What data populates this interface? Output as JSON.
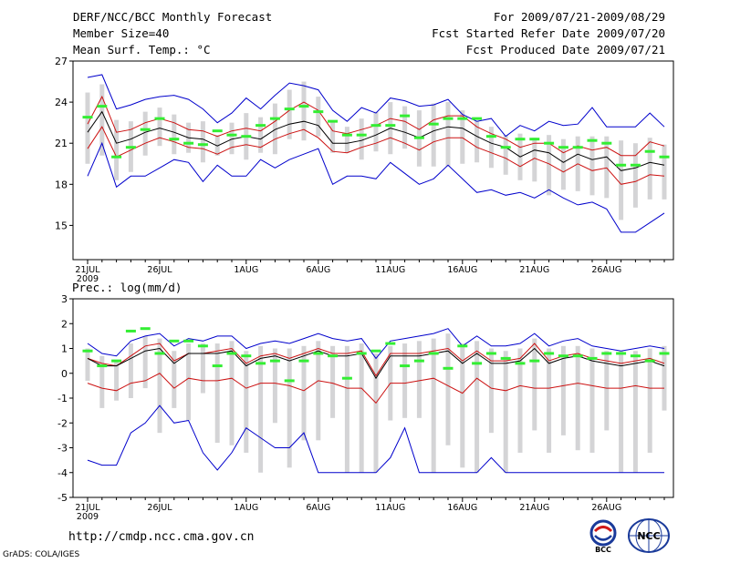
{
  "header": {
    "title": "DERF/NCC/BCC Monthly Forecast",
    "member_size": "Member Size=40",
    "variable": "Mean Surf. Temp.: °C",
    "period": "For 2009/07/21-2009/08/29",
    "started": "Fcst Started Refer Date 2009/07/20",
    "produced": "Fcst Produced Date 2009/07/21"
  },
  "precip_label": "Prec.: log(mm/d)",
  "url": "http://cmdp.ncc.cma.gov.cn",
  "footer": "GrADS: COLA/IGES",
  "logos": {
    "bcc": "BCC",
    "ncc": "NCC"
  },
  "colors": {
    "box": "#d4d4d6",
    "obs": "#33ee33",
    "mean": "#000000",
    "inner": "#cc1111",
    "outer": "#0000cc"
  },
  "chart_data": [
    {
      "type": "line",
      "title": "Mean Surf. Temp.: °C",
      "x_ticks": [
        "21JUL",
        "26JUL",
        "1AUG",
        "6AUG",
        "11AUG",
        "16AUG",
        "21AUG",
        "26AUG"
      ],
      "x_tick_index": [
        0,
        5,
        11,
        16,
        21,
        26,
        31,
        36
      ],
      "x_sub": "2009",
      "y_ticks": [
        15,
        18,
        21,
        24,
        27
      ],
      "ylim": [
        12.5,
        27
      ],
      "series": [
        {
          "name": "ensemble mean",
          "values": [
            21.8,
            23.3,
            21.0,
            21.3,
            21.8,
            22.1,
            21.8,
            21.4,
            21.3,
            20.8,
            21.3,
            21.5,
            21.3,
            22.0,
            22.4,
            22.6,
            22.3,
            21.0,
            21.0,
            21.2,
            21.6,
            22.1,
            21.8,
            21.4,
            21.9,
            22.2,
            22.1,
            21.5,
            21.0,
            20.7,
            20.0,
            20.5,
            20.3,
            19.6,
            20.2,
            19.8,
            20.0,
            19.0,
            19.2,
            19.6,
            19.4
          ]
        },
        {
          "name": "upper inner",
          "values": [
            22.4,
            24.4,
            21.8,
            22.0,
            22.5,
            22.8,
            22.5,
            22.0,
            21.9,
            21.5,
            21.9,
            22.1,
            21.9,
            22.6,
            23.4,
            24.0,
            23.4,
            21.9,
            21.7,
            22.0,
            22.3,
            22.8,
            22.6,
            22.0,
            22.7,
            23.0,
            23.0,
            22.2,
            21.7,
            21.3,
            20.7,
            21.0,
            21.0,
            20.3,
            20.8,
            20.5,
            20.7,
            20.1,
            20.1,
            21.1,
            20.8
          ]
        },
        {
          "name": "lower inner",
          "values": [
            20.6,
            22.2,
            20.0,
            20.5,
            21.0,
            21.4,
            21.1,
            20.7,
            20.6,
            20.2,
            20.7,
            20.9,
            20.7,
            21.3,
            21.7,
            22.0,
            21.4,
            20.4,
            20.3,
            20.7,
            21.0,
            21.4,
            21.0,
            20.5,
            21.1,
            21.4,
            21.4,
            20.7,
            20.3,
            19.9,
            19.3,
            19.9,
            19.5,
            18.9,
            19.5,
            19.0,
            19.2,
            18.0,
            18.2,
            18.7,
            18.6
          ]
        },
        {
          "name": "maximum",
          "values": [
            25.8,
            26.0,
            23.5,
            23.8,
            24.2,
            24.4,
            24.5,
            24.2,
            23.5,
            22.5,
            23.2,
            24.3,
            23.5,
            24.5,
            25.4,
            25.2,
            24.9,
            23.4,
            22.6,
            23.6,
            23.2,
            24.3,
            24.1,
            23.7,
            23.8,
            24.2,
            23.1,
            22.6,
            22.8,
            21.5,
            22.3,
            21.9,
            22.6,
            22.3,
            22.4,
            23.6,
            22.2,
            22.2,
            22.2,
            23.2,
            22.2
          ]
        },
        {
          "name": "minimum",
          "values": [
            18.6,
            21.0,
            17.8,
            18.6,
            18.6,
            19.2,
            19.8,
            19.6,
            18.2,
            19.4,
            18.6,
            18.6,
            19.8,
            19.2,
            19.8,
            20.2,
            20.6,
            18.0,
            18.6,
            18.6,
            18.4,
            19.6,
            18.8,
            18.0,
            18.4,
            19.4,
            18.4,
            17.4,
            17.6,
            17.2,
            17.4,
            17.0,
            17.6,
            17.0,
            16.5,
            16.7,
            16.2,
            14.5,
            14.5,
            15.2,
            15.9
          ]
        },
        {
          "name": "observed",
          "values": [
            22.9,
            23.7,
            20.0,
            20.7,
            22.0,
            22.8,
            21.3,
            21.0,
            20.9,
            21.9,
            21.6,
            21.5,
            22.3,
            22.8,
            23.5,
            23.7,
            23.3,
            22.6,
            21.6,
            21.6,
            22.3,
            22.3,
            23.0,
            21.4,
            22.4,
            22.8,
            22.8,
            22.8,
            21.5,
            20.7,
            21.3,
            21.3,
            21.0,
            20.7,
            20.7,
            21.2,
            21.0,
            19.4,
            19.4,
            20.4,
            20.0
          ]
        },
        {
          "name": "box upper",
          "values": [
            24.7,
            25.3,
            22.7,
            22.6,
            23.3,
            23.6,
            23.1,
            22.5,
            22.6,
            21.6,
            22.5,
            23.2,
            22.9,
            23.9,
            24.9,
            25.5,
            24.4,
            22.6,
            22.2,
            22.8,
            23.3,
            24.0,
            23.7,
            23.4,
            23.9,
            24.0,
            23.4,
            22.6,
            22.2,
            21.6,
            21.7,
            21.4,
            21.6,
            21.3,
            21.5,
            21.5,
            21.5,
            21.2,
            21.0,
            21.4,
            20.9
          ]
        },
        {
          "name": "box lower",
          "values": [
            19.5,
            20.1,
            18.3,
            18.9,
            20.1,
            20.8,
            20.2,
            20.3,
            19.6,
            20.1,
            20.2,
            19.8,
            20.3,
            20.2,
            21.3,
            21.2,
            21.5,
            20.3,
            20.3,
            19.8,
            20.4,
            20.2,
            20.6,
            19.3,
            19.3,
            19.3,
            19.5,
            19.6,
            19.2,
            18.7,
            18.3,
            18.2,
            17.2,
            17.6,
            17.5,
            17.2,
            17.0,
            15.4,
            16.3,
            16.9,
            16.9
          ]
        }
      ]
    },
    {
      "type": "line",
      "title": "Prec.: log(mm/d)",
      "x_ticks": [
        "21JUL",
        "26JUL",
        "1AUG",
        "6AUG",
        "11AUG",
        "16AUG",
        "21AUG",
        "26AUG"
      ],
      "x_tick_index": [
        0,
        5,
        11,
        16,
        21,
        26,
        31,
        36
      ],
      "x_sub": "2009",
      "y_ticks": [
        -5,
        -4,
        -3,
        -2,
        -1,
        0,
        1,
        2,
        3
      ],
      "ylim": [
        -5,
        3
      ],
      "series": [
        {
          "name": "ensemble mean",
          "values": [
            0.6,
            0.3,
            0.3,
            0.6,
            0.9,
            1.0,
            0.4,
            0.8,
            0.8,
            0.8,
            0.9,
            0.3,
            0.6,
            0.7,
            0.5,
            0.7,
            0.9,
            0.7,
            0.7,
            0.8,
            -0.2,
            0.7,
            0.7,
            0.7,
            0.8,
            0.9,
            0.4,
            0.8,
            0.4,
            0.4,
            0.5,
            1.0,
            0.4,
            0.6,
            0.7,
            0.5,
            0.4,
            0.3,
            0.4,
            0.5,
            0.3
          ]
        },
        {
          "name": "upper inner",
          "values": [
            0.6,
            0.4,
            0.3,
            0.7,
            1.1,
            1.2,
            0.5,
            0.8,
            0.8,
            0.9,
            1.0,
            0.4,
            0.7,
            0.8,
            0.6,
            0.8,
            1.0,
            0.8,
            0.8,
            0.9,
            -0.1,
            0.8,
            0.8,
            0.8,
            0.9,
            1.0,
            0.5,
            0.9,
            0.5,
            0.5,
            0.6,
            1.2,
            0.5,
            0.7,
            0.8,
            0.6,
            0.5,
            0.4,
            0.5,
            0.6,
            0.4
          ]
        },
        {
          "name": "lower inner",
          "values": [
            -0.4,
            -0.6,
            -0.7,
            -0.4,
            -0.3,
            0.0,
            -0.6,
            -0.2,
            -0.3,
            -0.3,
            -0.2,
            -0.6,
            -0.4,
            -0.4,
            -0.5,
            -0.7,
            -0.3,
            -0.4,
            -0.6,
            -0.6,
            -1.2,
            -0.4,
            -0.4,
            -0.3,
            -0.2,
            -0.5,
            -0.8,
            -0.2,
            -0.6,
            -0.7,
            -0.5,
            -0.6,
            -0.6,
            -0.5,
            -0.4,
            -0.5,
            -0.6,
            -0.6,
            -0.5,
            -0.6,
            -0.6
          ]
        },
        {
          "name": "maximum",
          "values": [
            1.2,
            0.8,
            0.7,
            1.3,
            1.5,
            1.6,
            1.1,
            1.4,
            1.3,
            1.5,
            1.5,
            1.0,
            1.2,
            1.3,
            1.2,
            1.4,
            1.6,
            1.4,
            1.3,
            1.4,
            0.6,
            1.3,
            1.4,
            1.5,
            1.6,
            1.8,
            1.1,
            1.5,
            1.1,
            1.1,
            1.2,
            1.6,
            1.1,
            1.3,
            1.4,
            1.1,
            1.0,
            0.9,
            1.0,
            1.1,
            1.0
          ]
        },
        {
          "name": "minimum",
          "values": [
            -3.5,
            -3.7,
            -3.7,
            -2.4,
            -2.0,
            -1.3,
            -2.0,
            -1.9,
            -3.2,
            -3.9,
            -3.2,
            -2.2,
            -2.6,
            -3.0,
            -3.0,
            -2.4,
            -4.0,
            -4.0,
            -4.0,
            -4.0,
            -4.0,
            -3.4,
            -2.2,
            -4.0,
            -4.0,
            -4.0,
            -4.0,
            -4.0,
            -3.4,
            -4.0,
            -4.0,
            -4.0,
            -4.0,
            -4.0,
            -4.0,
            -4.0,
            -4.0,
            -4.0,
            -4.0,
            -4.0,
            -4.0
          ]
        },
        {
          "name": "observed",
          "values": [
            0.9,
            0.3,
            0.5,
            1.7,
            1.8,
            0.8,
            1.3,
            1.3,
            1.1,
            0.3,
            0.8,
            0.7,
            0.4,
            0.5,
            -0.3,
            0.5,
            0.8,
            0.7,
            -0.2,
            0.8,
            0.9,
            1.2,
            0.3,
            0.5,
            0.8,
            0.2,
            1.1,
            0.4,
            0.8,
            0.6,
            0.4,
            0.5,
            0.8,
            0.7,
            0.7,
            0.6,
            0.8,
            0.8,
            0.7,
            0.5,
            0.8
          ]
        },
        {
          "name": "box upper",
          "values": [
            1.0,
            0.7,
            0.5,
            1.2,
            1.5,
            1.4,
            0.9,
            1.2,
            1.2,
            1.2,
            1.3,
            0.9,
            1.1,
            1.0,
            1.0,
            1.1,
            1.3,
            1.1,
            1.1,
            1.2,
            0.8,
            1.1,
            1.2,
            1.3,
            1.4,
            1.6,
            1.2,
            1.3,
            1.0,
            0.9,
            1.0,
            1.4,
            1.0,
            1.1,
            1.1,
            1.0,
            0.9,
            0.9,
            0.9,
            1.0,
            1.1
          ]
        },
        {
          "name": "box lower",
          "values": [
            -0.3,
            -1.4,
            -1.1,
            -1.0,
            -0.6,
            -2.4,
            -1.4,
            -1.9,
            -0.8,
            -2.8,
            -2.9,
            -3.2,
            -4.0,
            -2.0,
            -3.8,
            -2.7,
            -2.7,
            -1.8,
            -4.0,
            -4.0,
            -4.0,
            -1.9,
            -1.8,
            -1.8,
            -4.0,
            -2.9,
            -3.8,
            -4.0,
            -2.4,
            -4.0,
            -3.2,
            -2.3,
            -3.2,
            -2.5,
            -3.1,
            -3.2,
            -2.3,
            -4.0,
            -4.0,
            -3.2,
            -1.5
          ]
        }
      ]
    }
  ]
}
